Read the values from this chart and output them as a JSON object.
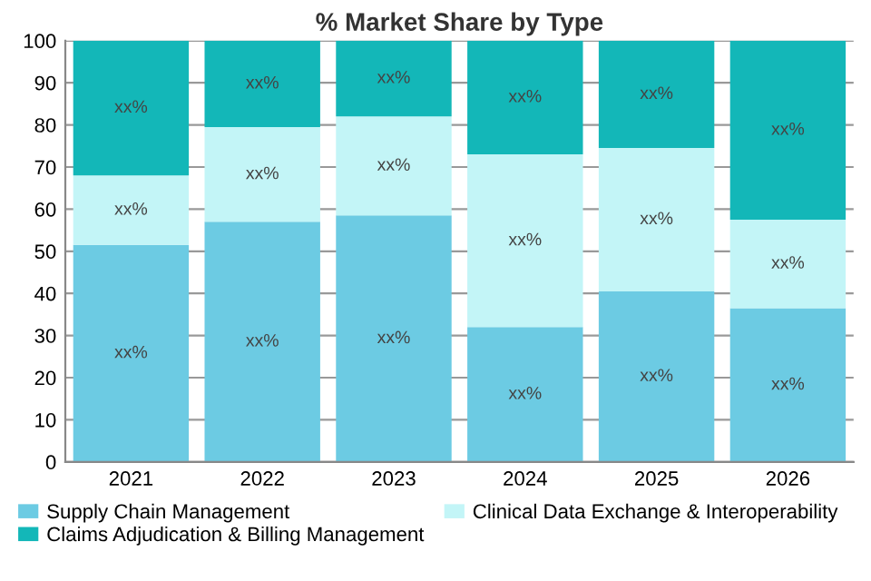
{
  "chart_data": {
    "type": "bar",
    "title": "% Market Share by Type",
    "stacked": true,
    "categories": [
      "2021",
      "2022",
      "2023",
      "2024",
      "2025",
      "2026"
    ],
    "series": [
      {
        "name": "Supply Chain Management",
        "color": "#6ccbe3",
        "values": [
          51.5,
          57,
          58.5,
          32,
          40.5,
          36.5
        ],
        "value_labels": [
          "xx%",
          "xx%",
          "xx%",
          "xx%",
          "xx%",
          "xx%"
        ]
      },
      {
        "name": "Clinical Data Exchange & Interoperability",
        "color": "#c3f5f7",
        "values": [
          16.5,
          22.5,
          23.5,
          41,
          34,
          21
        ],
        "value_labels": [
          "xx%",
          "xx%",
          "xx%",
          "xx%",
          "xx%",
          "xx%"
        ]
      },
      {
        "name": "Claims Adjudication & Billing Management",
        "color": "#13b7b8",
        "values": [
          32,
          20.5,
          18,
          27,
          25.5,
          42.5
        ],
        "value_labels": [
          "xx%",
          "xx%",
          "xx%",
          "xx%",
          "xx%",
          "xx%"
        ]
      }
    ],
    "ylim": [
      0,
      100
    ],
    "yticks": [
      0,
      10,
      20,
      30,
      40,
      50,
      60,
      70,
      80,
      90,
      100
    ],
    "grid": "y",
    "legend": "bottom"
  }
}
